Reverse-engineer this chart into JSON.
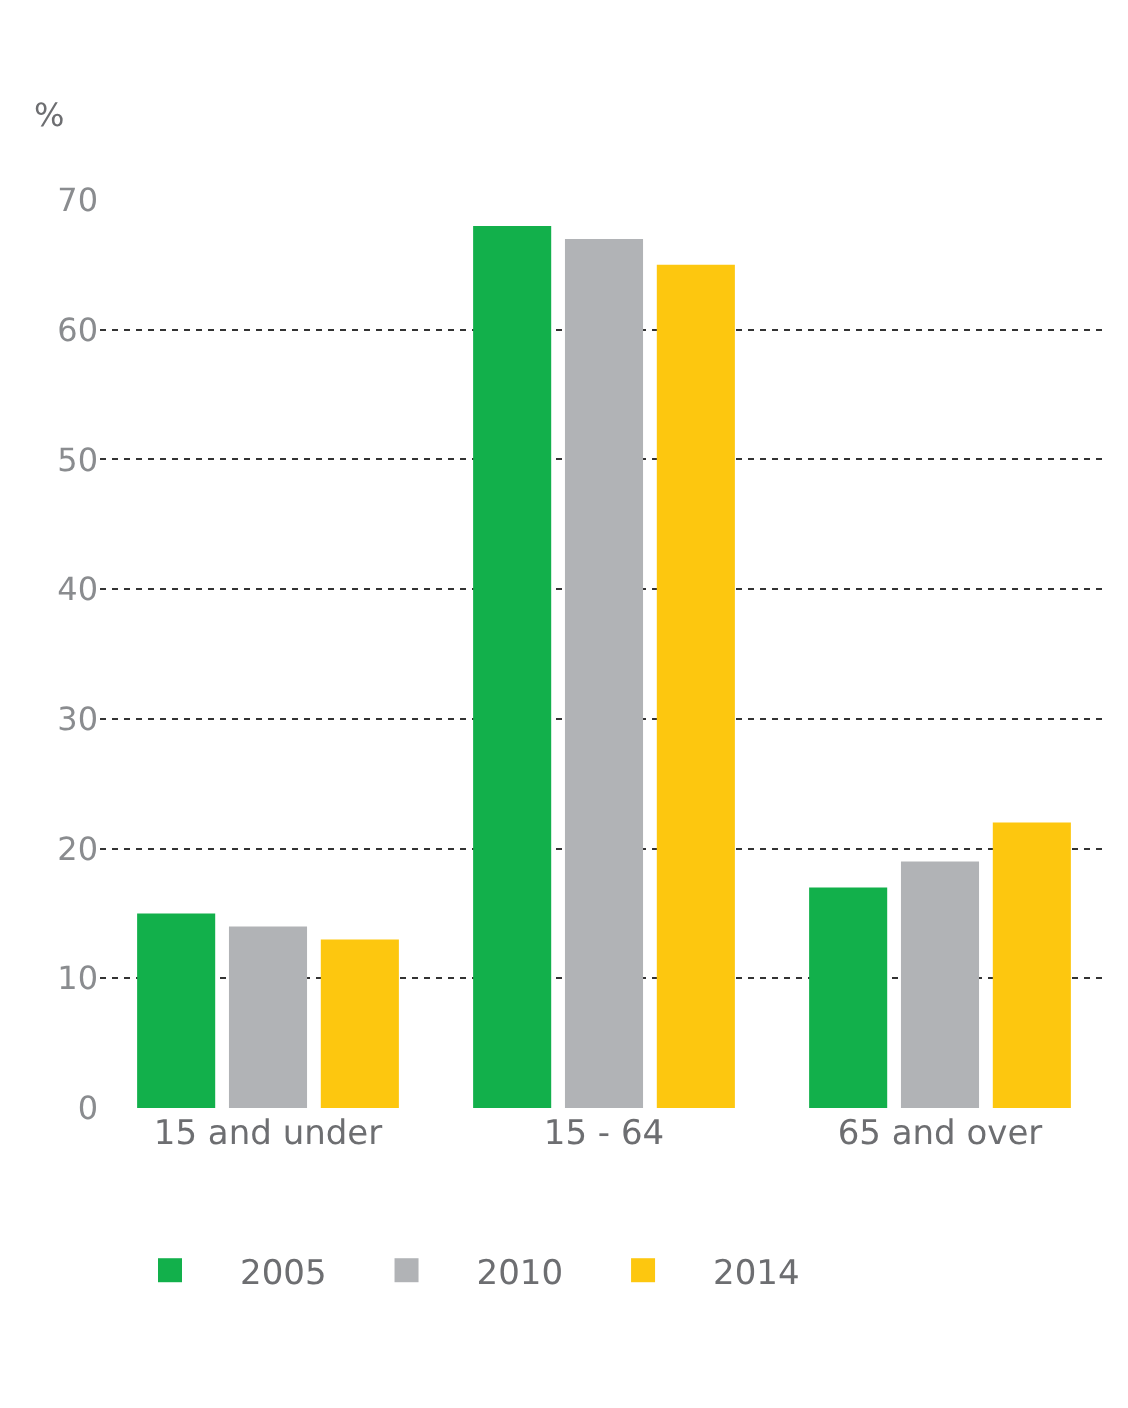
{
  "chart_data": {
    "type": "bar",
    "ylabel": "%",
    "categories": [
      "15 and under",
      "15 - 64",
      "65 and over"
    ],
    "series": [
      {
        "name": "2005",
        "color": "#12b04b",
        "values": [
          15,
          68,
          17
        ]
      },
      {
        "name": "2010",
        "color": "#b1b3b6",
        "values": [
          14,
          67,
          19
        ]
      },
      {
        "name": "2014",
        "color": "#fdc70f",
        "values": [
          13,
          65,
          22
        ]
      }
    ],
    "ylim": [
      0,
      70
    ],
    "yticks": [
      0,
      10,
      20,
      30,
      40,
      50,
      60,
      70
    ],
    "grid": "y",
    "legend": "bottom"
  }
}
